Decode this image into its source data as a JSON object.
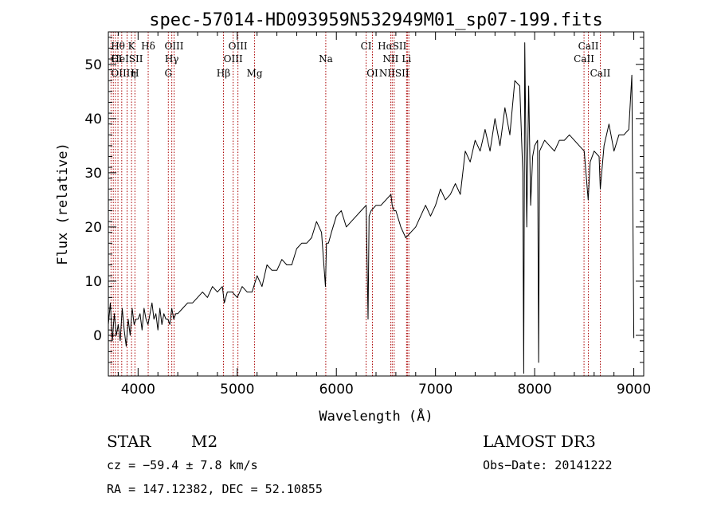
{
  "chart_data": {
    "type": "line",
    "title": "spec-57014-HD093959N532949M01_sp07-199.fits",
    "xlabel": "Wavelength (Å)",
    "ylabel": "Flux (relative)",
    "xlim": [
      3700,
      9100
    ],
    "ylim": [
      -7.5,
      56
    ],
    "x_ticks": [
      4000,
      5000,
      6000,
      7000,
      8000,
      9000
    ],
    "y_ticks": [
      0,
      10,
      20,
      30,
      40,
      50
    ],
    "grid": false,
    "series": [
      {
        "color": "#000000",
        "x": [
          3700,
          3720,
          3740,
          3760,
          3780,
          3800,
          3820,
          3840,
          3860,
          3880,
          3900,
          3920,
          3940,
          3960,
          3980,
          4000,
          4020,
          4040,
          4060,
          4080,
          4100,
          4120,
          4140,
          4160,
          4180,
          4200,
          4220,
          4240,
          4260,
          4280,
          4300,
          4320,
          4340,
          4360,
          4380,
          4400,
          4450,
          4500,
          4550,
          4600,
          4650,
          4700,
          4750,
          4800,
          4850,
          4870,
          4900,
          4950,
          5000,
          5050,
          5100,
          5150,
          5200,
          5250,
          5300,
          5350,
          5400,
          5450,
          5500,
          5550,
          5600,
          5650,
          5700,
          5750,
          5800,
          5850,
          5890,
          5900,
          5920,
          5950,
          6000,
          6050,
          6100,
          6150,
          6200,
          6250,
          6300,
          6320,
          6330,
          6350,
          6400,
          6450,
          6500,
          6550,
          6563,
          6580,
          6600,
          6650,
          6700,
          6750,
          6800,
          6850,
          6900,
          6950,
          7000,
          7050,
          7100,
          7150,
          7200,
          7250,
          7300,
          7350,
          7400,
          7450,
          7500,
          7550,
          7600,
          7650,
          7700,
          7750,
          7800,
          7850,
          7880,
          7890,
          7900,
          7920,
          7940,
          7960,
          7980,
          8000,
          8030,
          8040,
          8050,
          8100,
          8150,
          8200,
          8250,
          8300,
          8350,
          8400,
          8450,
          8500,
          8540,
          8560,
          8600,
          8650,
          8662,
          8700,
          8750,
          8800,
          8850,
          8900,
          8950,
          8980,
          9000
        ],
        "y": [
          2,
          6,
          -1,
          4,
          0,
          2,
          -1,
          5,
          1,
          -2,
          3,
          0,
          5,
          2,
          3,
          3,
          4,
          1,
          5,
          3,
          2,
          4,
          6,
          3,
          4,
          1,
          5,
          2,
          4,
          3,
          3,
          2,
          5,
          3,
          4,
          4,
          5,
          6,
          6,
          7,
          8,
          7,
          9,
          8,
          9,
          6,
          8,
          8,
          7,
          9,
          8,
          8,
          11,
          9,
          13,
          12,
          12,
          14,
          13,
          13,
          16,
          17,
          17,
          18,
          21,
          19,
          9,
          17,
          17,
          19,
          22,
          23,
          20,
          21,
          22,
          23,
          24,
          3,
          22,
          23,
          24,
          24,
          25,
          26,
          24,
          23,
          23,
          20,
          18,
          19,
          20,
          22,
          24,
          22,
          24,
          27,
          25,
          26,
          28,
          26,
          34,
          32,
          36,
          34,
          38,
          34,
          40,
          35,
          42,
          37,
          47,
          46,
          30,
          -7,
          54,
          20,
          46,
          24,
          33,
          35,
          36,
          -5,
          34,
          36,
          35,
          34,
          36,
          36,
          37,
          36,
          35,
          34,
          25,
          32,
          34,
          33,
          27,
          35,
          39,
          34,
          37,
          37,
          38,
          48,
          -0.5
        ]
      }
    ],
    "lines_top": [
      {
        "label": "Hθ",
        "wl": 3797,
        "row": 1
      },
      {
        "label": "K",
        "wl": 3934,
        "row": 1
      },
      {
        "label": "Hδ",
        "wl": 4102,
        "row": 1
      },
      {
        "label": "OIII",
        "wl": 4363,
        "row": 1
      },
      {
        "label": "OIII",
        "wl": 5007,
        "row": 1
      },
      {
        "label": "CI",
        "wl": 6300,
        "row": 1
      },
      {
        "label": "HαSII",
        "wl": 6563,
        "row": 1
      },
      {
        "label": "CaII",
        "wl": 8542,
        "row": 1
      },
      {
        "label": "CI",
        "wl": 3727,
        "row": 2
      },
      {
        "label": "HeISII",
        "wl": 3889,
        "row": 2
      },
      {
        "label": "Hγ",
        "wl": 4340,
        "row": 2
      },
      {
        "label": "OIII",
        "wl": 4959,
        "row": 2
      },
      {
        "label": "Na",
        "wl": 5893,
        "row": 2
      },
      {
        "label": "NII",
        "wl": 6548,
        "row": 2
      },
      {
        "label": "Li",
        "wl": 6708,
        "row": 2
      },
      {
        "label": "CaII",
        "wl": 8498,
        "row": 2
      },
      {
        "label": "OIIIη",
        "wl": 3727,
        "row": 3
      },
      {
        "label": "H",
        "wl": 3968,
        "row": 3
      },
      {
        "label": "G",
        "wl": 4305,
        "row": 3
      },
      {
        "label": "Hβ",
        "wl": 4861,
        "row": 3
      },
      {
        "label": "Mg",
        "wl": 5175,
        "row": 3
      },
      {
        "label": "OI",
        "wl": 6364,
        "row": 3
      },
      {
        "label": "NIISII",
        "wl": 6583,
        "row": 3
      },
      {
        "label": "CaII",
        "wl": 8662,
        "row": 3
      }
    ],
    "line_marker_color": "#aa0000",
    "line_wavelengths": [
      3727,
      3750,
      3771,
      3797,
      3835,
      3889,
      3934,
      3968,
      4102,
      4305,
      4340,
      4363,
      4861,
      4959,
      5007,
      5175,
      5893,
      6300,
      6364,
      6548,
      6563,
      6583,
      6708,
      6716,
      6731,
      8498,
      8542,
      8662
    ]
  },
  "info": {
    "class_label": "STAR",
    "subclass": "M2",
    "survey": "LAMOST DR3",
    "cz": "cz = −59.4 ± 7.8 km/s",
    "obs_date": "Obs−Date: 20141222",
    "radec": "RA = 147.12382, DEC =  52.10855"
  }
}
